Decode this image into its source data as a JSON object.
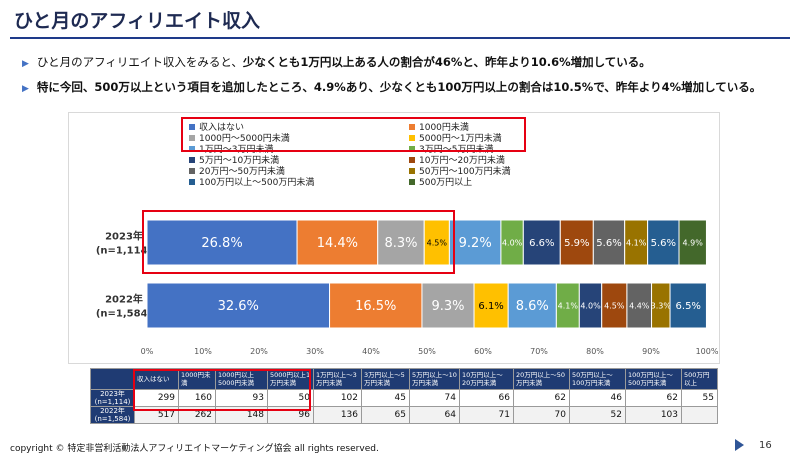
{
  "title": "ひと月のアフィリエイト収入",
  "bullets": {
    "b1_pre": "ひと月のアフィリエイト収入をみると、",
    "b1_hl": "少なくとも1万円以上ある人の割合が46%と、昨年より10.6%増加している。",
    "b2": "特に今回、500万以上という項目を追加したところ、4.9%あり、少なくとも100万円以上の割合は10.5%で、昨年より4%増加している。"
  },
  "chart_data": {
    "type": "bar",
    "orientation": "horizontal",
    "stacked": "100%",
    "categories": [
      "2023年\n(n=1,114)",
      "2022年\n(n=1,584)"
    ],
    "series": [
      {
        "name": "収入はない",
        "color": "#4472c4",
        "values": [
          26.8,
          32.6
        ]
      },
      {
        "name": "1000円未満",
        "color": "#ed7d31",
        "values": [
          14.4,
          16.5
        ]
      },
      {
        "name": "1000円～5000円未満",
        "color": "#a5a5a5",
        "values": [
          8.3,
          9.3
        ]
      },
      {
        "name": "5000円～1万円未満",
        "color": "#ffc000",
        "values": [
          4.5,
          6.1
        ]
      },
      {
        "name": "1万円～3万円未満",
        "color": "#5b9bd5",
        "values": [
          9.2,
          8.6
        ]
      },
      {
        "name": "3万円～5万円未満",
        "color": "#70ad47",
        "values": [
          4.0,
          4.1
        ]
      },
      {
        "name": "5万円～10万円未満",
        "color": "#264478",
        "values": [
          6.6,
          4.0
        ]
      },
      {
        "name": "10万円～20万円未満",
        "color": "#9e480e",
        "values": [
          5.9,
          4.5
        ]
      },
      {
        "name": "20万円～50万円未満",
        "color": "#636363",
        "values": [
          5.6,
          4.4
        ]
      },
      {
        "name": "50万円～100万円未満",
        "color": "#997300",
        "values": [
          4.1,
          3.3
        ]
      },
      {
        "name": "100万円以上～500万円未満",
        "color": "#255e91",
        "values": [
          5.6,
          6.5
        ]
      },
      {
        "name": "500万円以上",
        "color": "#43682b",
        "values": [
          4.9,
          null
        ]
      }
    ],
    "data_labels": [
      [
        "26.8%",
        "14.4%",
        "8.3%",
        "4.5%",
        "9.2%",
        "4.0%",
        "6.6%",
        "5.9%",
        "5.6%",
        "4.1%",
        "5.6%",
        "4.9%"
      ],
      [
        "32.6%",
        "16.5%",
        "9.3%",
        "6.1%",
        "8.6%",
        "4.1%",
        "4.0%",
        "4.5%",
        "4.4%",
        "3.3%",
        "6.5%",
        ""
      ]
    ],
    "xticks": [
      "0%",
      "10%",
      "20%",
      "30%",
      "40%",
      "50%",
      "60%",
      "70%",
      "80%",
      "90%",
      "100%"
    ],
    "xlim": [
      0,
      100
    ],
    "legend_position": "top",
    "grid": false
  },
  "table": {
    "headers": [
      "収入はない",
      "1000円未満",
      "1000円以上5000円未満",
      "5000円以上1万円未満",
      "1万円以上～3万円未満",
      "3万円以上～5万円未満",
      "5万円以上～10万円未満",
      "10万円以上～20万円未満",
      "20万円以上～50万円未満",
      "50万円以上～100万円未満",
      "100万円以上～500万円未満",
      "500万円以上"
    ],
    "rows": [
      {
        "label": "2023年 (n=1,114)",
        "values": [
          "299",
          "160",
          "93",
          "50",
          "102",
          "45",
          "74",
          "66",
          "62",
          "46",
          "62",
          "55"
        ]
      },
      {
        "label": "2022年 (n=1,584)",
        "values": [
          "517",
          "262",
          "148",
          "96",
          "136",
          "65",
          "64",
          "71",
          "70",
          "52",
          "103",
          ""
        ]
      }
    ]
  },
  "footer": "copyright © 特定非営利活動法人アフィリエイトマーケティング協会 all rights reserved.",
  "page_number": "16"
}
